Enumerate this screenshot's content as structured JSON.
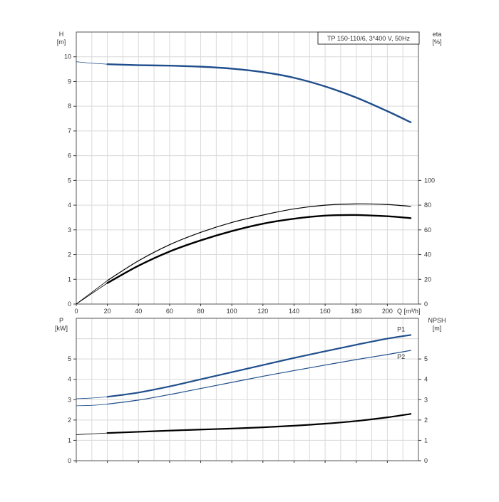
{
  "title": "TP 150-110/6, 3*400 V, 50Hz",
  "colors": {
    "blue": "#1f4e8c",
    "black": "#000000",
    "grid": "#d9d9d9"
  },
  "chart_data": [
    {
      "type": "line",
      "x_axis": {
        "label": "Q [m³/h]",
        "range": [
          0,
          220
        ],
        "ticks": [
          0,
          20,
          40,
          60,
          80,
          100,
          120,
          140,
          160,
          180,
          200
        ]
      },
      "y_left": {
        "label_top": "H",
        "label_unit": "[m]",
        "range": [
          0,
          11
        ],
        "ticks": [
          0,
          1,
          2,
          3,
          4,
          5,
          6,
          7,
          8,
          9,
          10
        ]
      },
      "y_right": {
        "label_top": "eta",
        "label_unit": "[%]",
        "range": [
          0,
          220
        ],
        "ticks": [
          0,
          20,
          40,
          60,
          80,
          100
        ]
      },
      "grid": true,
      "series": [
        {
          "axis": "left",
          "color": "blue",
          "extension": [
            [
              0,
              9.8
            ],
            [
              10,
              9.74
            ],
            [
              20,
              9.7
            ]
          ],
          "values": [
            [
              20,
              9.7
            ],
            [
              40,
              9.66
            ],
            [
              60,
              9.64
            ],
            [
              80,
              9.6
            ],
            [
              100,
              9.52
            ],
            [
              120,
              9.38
            ],
            [
              140,
              9.15
            ],
            [
              160,
              8.8
            ],
            [
              180,
              8.35
            ],
            [
              200,
              7.8
            ],
            [
              215,
              7.35
            ]
          ]
        },
        {
          "axis": "right",
          "color": "black",
          "extension": [
            [
              0,
              0
            ],
            [
              10,
              9.5
            ],
            [
              20,
              19
            ]
          ],
          "values": [
            [
              20,
              19
            ],
            [
              40,
              35
            ],
            [
              60,
              48
            ],
            [
              80,
              58
            ],
            [
              100,
              66
            ],
            [
              120,
              72
            ],
            [
              140,
              77
            ],
            [
              160,
              80
            ],
            [
              180,
              81
            ],
            [
              200,
              80.5
            ],
            [
              215,
              79
            ]
          ]
        },
        {
          "axis": "right",
          "color": "black",
          "extension": [
            [
              0,
              0
            ],
            [
              10,
              8.5
            ],
            [
              20,
              17
            ]
          ],
          "values": [
            [
              20,
              17
            ],
            [
              40,
              31
            ],
            [
              60,
              42.5
            ],
            [
              80,
              51.5
            ],
            [
              100,
              59
            ],
            [
              120,
              65
            ],
            [
              140,
              69
            ],
            [
              160,
              71.5
            ],
            [
              180,
              72
            ],
            [
              200,
              71
            ],
            [
              215,
              69.5
            ]
          ]
        }
      ]
    },
    {
      "type": "line",
      "x_axis": {
        "range": [
          0,
          220
        ],
        "ticks": [
          0,
          20,
          40,
          60,
          80,
          100,
          120,
          140,
          160,
          180,
          200
        ]
      },
      "y_left": {
        "label_top": "P",
        "label_unit": "[kW]",
        "range": [
          0,
          7
        ],
        "ticks": [
          0,
          1,
          2,
          3,
          4,
          5
        ]
      },
      "y_right": {
        "label_top": "NPSH",
        "label_unit": "[m]",
        "range": [
          0,
          7
        ],
        "ticks": [
          0,
          1,
          2,
          3,
          4,
          5
        ]
      },
      "grid": true,
      "series": [
        {
          "name": "P1",
          "axis": "left",
          "color": "blue",
          "extension": [
            [
              0,
              3.05
            ],
            [
              10,
              3.08
            ],
            [
              20,
              3.14
            ]
          ],
          "values": [
            [
              20,
              3.14
            ],
            [
              40,
              3.35
            ],
            [
              60,
              3.65
            ],
            [
              80,
              4.0
            ],
            [
              100,
              4.35
            ],
            [
              120,
              4.7
            ],
            [
              140,
              5.05
            ],
            [
              160,
              5.38
            ],
            [
              180,
              5.7
            ],
            [
              200,
              6.0
            ],
            [
              215,
              6.18
            ]
          ]
        },
        {
          "name": "P2",
          "axis": "left",
          "color": "blue",
          "extension": [
            [
              0,
              2.7
            ],
            [
              10,
              2.72
            ],
            [
              20,
              2.78
            ]
          ],
          "values": [
            [
              20,
              2.78
            ],
            [
              40,
              2.98
            ],
            [
              60,
              3.25
            ],
            [
              80,
              3.55
            ],
            [
              100,
              3.85
            ],
            [
              120,
              4.15
            ],
            [
              140,
              4.43
            ],
            [
              160,
              4.7
            ],
            [
              180,
              4.97
            ],
            [
              200,
              5.22
            ],
            [
              215,
              5.42
            ]
          ]
        },
        {
          "axis": "right",
          "color": "black",
          "extension": [
            [
              0,
              1.28
            ],
            [
              10,
              1.32
            ],
            [
              20,
              1.36
            ]
          ],
          "values": [
            [
              20,
              1.36
            ],
            [
              40,
              1.42
            ],
            [
              60,
              1.48
            ],
            [
              80,
              1.53
            ],
            [
              100,
              1.58
            ],
            [
              120,
              1.64
            ],
            [
              140,
              1.72
            ],
            [
              160,
              1.82
            ],
            [
              180,
              1.95
            ],
            [
              200,
              2.13
            ],
            [
              215,
              2.3
            ]
          ]
        }
      ]
    }
  ]
}
